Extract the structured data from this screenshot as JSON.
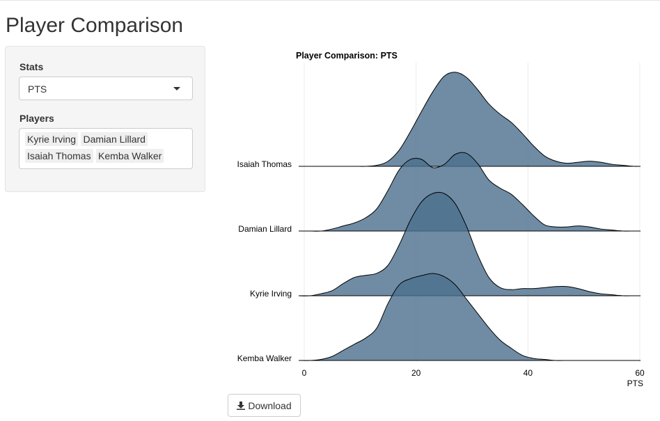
{
  "page": {
    "title": "Player Comparison"
  },
  "sidebar": {
    "stats_label": "Stats",
    "stats_value": "PTS",
    "players_label": "Players",
    "players": [
      "Kyrie Irving",
      "Damian Lillard",
      "Isaiah Thomas",
      "Kemba Walker"
    ]
  },
  "download": {
    "label": "Download"
  },
  "colors": {
    "fill": "#4b6f8d",
    "stroke": "#000000",
    "grid": "#ebebeb"
  },
  "chart_data": {
    "type": "area",
    "subtype": "ridgeline-density",
    "title": "Player Comparison: PTS",
    "xlabel": "PTS",
    "ylabel": "",
    "xlim": [
      0,
      60
    ],
    "x_ticks": [
      0,
      20,
      40,
      60
    ],
    "grid": true,
    "x": [
      -1,
      1,
      3,
      5,
      7,
      9,
      11,
      13,
      15,
      17,
      19,
      21,
      23,
      25,
      27,
      29,
      31,
      33,
      35,
      37,
      39,
      41,
      43,
      45,
      47,
      49,
      51,
      53,
      55,
      57,
      59,
      61
    ],
    "series": [
      {
        "name": "Isaiah Thomas",
        "values": [
          0,
          0,
          0,
          0,
          0,
          0,
          0,
          0.01,
          0.05,
          0.16,
          0.34,
          0.54,
          0.73,
          0.88,
          0.92,
          0.87,
          0.75,
          0.61,
          0.51,
          0.43,
          0.32,
          0.2,
          0.1,
          0.05,
          0.03,
          0.04,
          0.05,
          0.04,
          0.02,
          0.01,
          0,
          0
        ]
      },
      {
        "name": "Damian Lillard",
        "values": [
          0,
          0,
          0,
          0.02,
          0.05,
          0.08,
          0.13,
          0.22,
          0.4,
          0.6,
          0.7,
          0.7,
          0.62,
          0.65,
          0.75,
          0.76,
          0.66,
          0.5,
          0.42,
          0.36,
          0.26,
          0.15,
          0.06,
          0.04,
          0.04,
          0.05,
          0.04,
          0.02,
          0.01,
          0,
          0,
          0
        ]
      },
      {
        "name": "Kyrie Irving",
        "values": [
          0,
          0,
          0.02,
          0.05,
          0.12,
          0.18,
          0.2,
          0.22,
          0.3,
          0.5,
          0.74,
          0.92,
          1.0,
          1.0,
          0.9,
          0.68,
          0.4,
          0.18,
          0.08,
          0.06,
          0.07,
          0.07,
          0.08,
          0.09,
          0.09,
          0.07,
          0.04,
          0.02,
          0.01,
          0,
          0,
          0
        ]
      },
      {
        "name": "Kemba Walker",
        "values": [
          0,
          0,
          0.01,
          0.04,
          0.1,
          0.16,
          0.22,
          0.32,
          0.56,
          0.74,
          0.8,
          0.83,
          0.85,
          0.82,
          0.74,
          0.6,
          0.46,
          0.32,
          0.2,
          0.12,
          0.05,
          0.02,
          0.01,
          0,
          0,
          0,
          0,
          0,
          0,
          0,
          0,
          0
        ]
      }
    ],
    "row_order_top_to_bottom": [
      "Isaiah Thomas",
      "Damian Lillard",
      "Kyrie Irving",
      "Kemba Walker"
    ]
  }
}
